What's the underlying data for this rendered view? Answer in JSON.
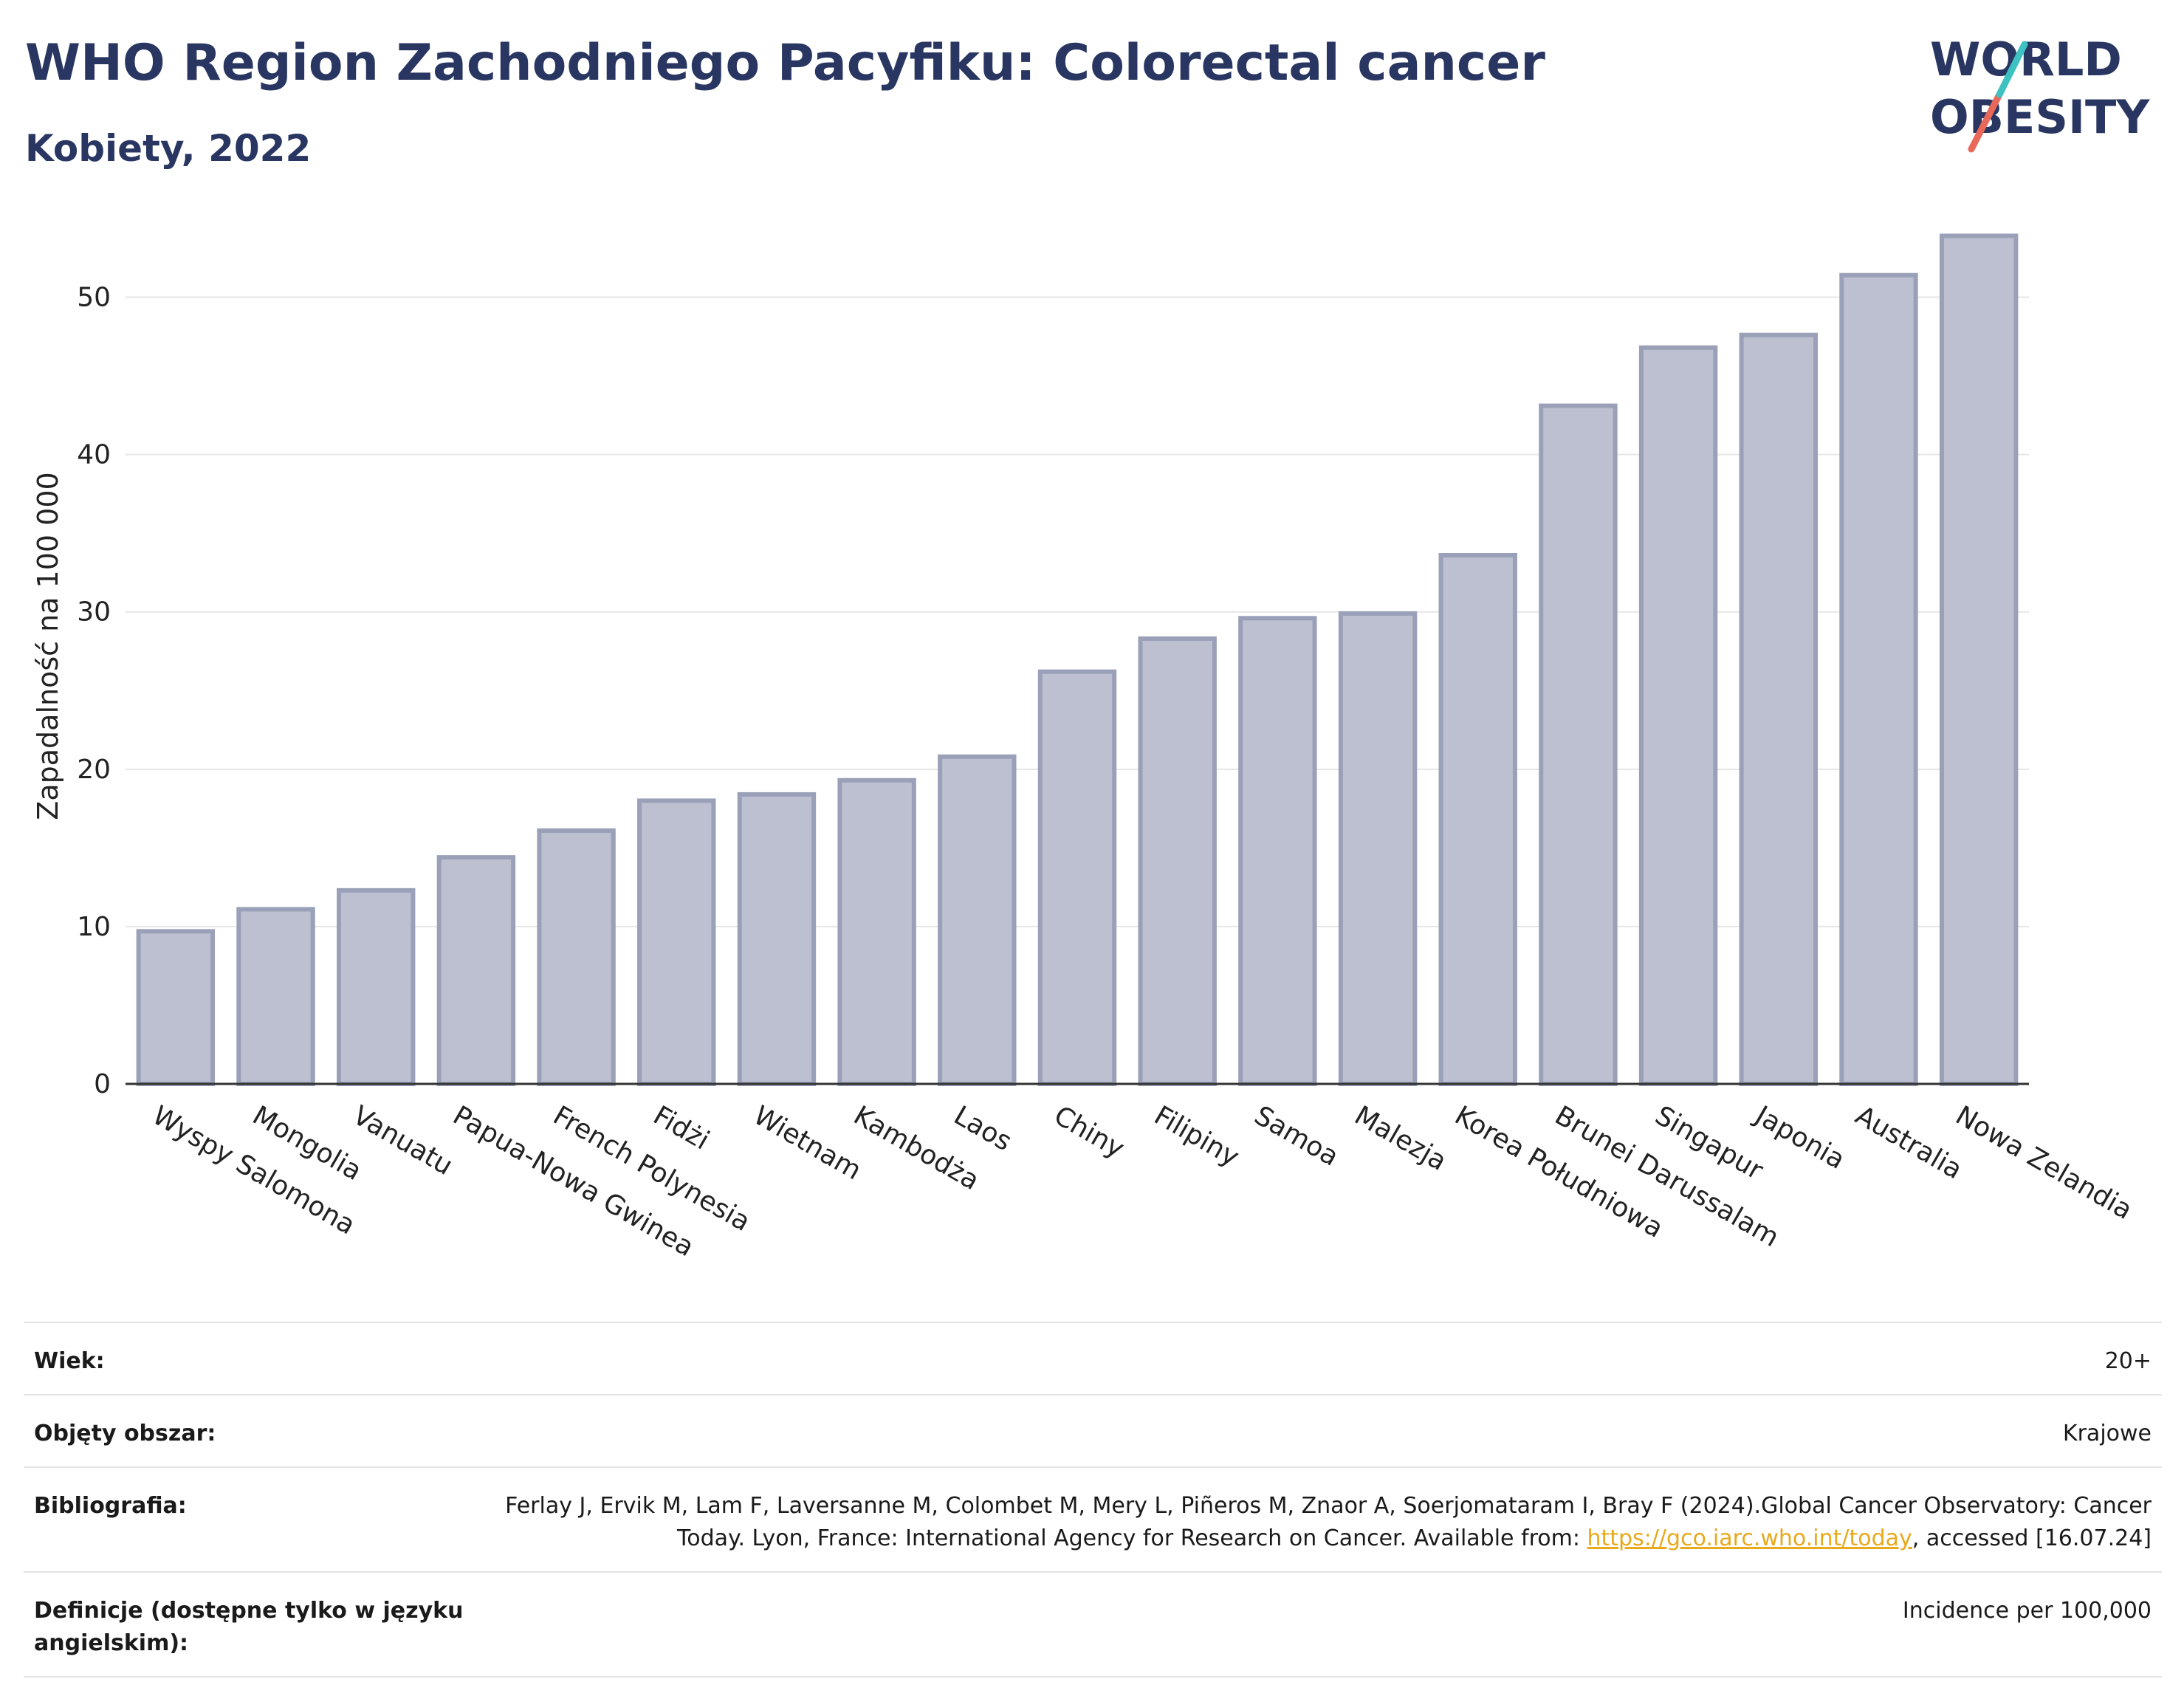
{
  "header": {
    "title": "WHO Region Zachodniego Pacyfiku: Colorectal cancer",
    "subtitle": "Kobiety, 2022"
  },
  "logo": {
    "line1": "WORLD",
    "line2": "OBESITY",
    "accent_colors": [
      "#3ec1c1",
      "#e8695a"
    ]
  },
  "chart_data": {
    "type": "bar",
    "ylabel": "Zapadalność na 100 000",
    "xlabel": "",
    "ylim": [
      0,
      55
    ],
    "yticks": [
      0,
      10,
      20,
      30,
      40,
      50
    ],
    "grid": true,
    "bar_color": "#bcc0d0",
    "bar_edge_color": "#9aa0b8",
    "categories": [
      "Wyspy Salomona",
      "Mongolia",
      "Vanuatu",
      "Papua-Nowa Gwinea",
      "French Polynesia",
      "Fidżi",
      "Wietnam",
      "Kambodża",
      "Laos",
      "Chiny",
      "Filipiny",
      "Samoa",
      "Malezja",
      "Korea Południowa",
      "Brunei Darussalam",
      "Singapur",
      "Japonia",
      "Australia",
      "Nowa Zelandia"
    ],
    "values": [
      9.7,
      11.1,
      12.3,
      14.4,
      16.1,
      18.0,
      18.4,
      19.3,
      20.8,
      26.2,
      28.3,
      29.6,
      29.9,
      33.6,
      43.1,
      46.8,
      47.6,
      51.4,
      53.9
    ]
  },
  "meta": {
    "age_label": "Wiek:",
    "age_value": "20+",
    "area_label": "Objęty obszar:",
    "area_value": "Krajowe",
    "bib_label": "Bibliografia:",
    "bib_text_1": "Ferlay J, Ervik M, Lam F, Laversanne M, Colombet M, Mery L, Piñeros M, Znaor A, Soerjomataram I, Bray F (2024).Global Cancer Observatory: Cancer Today. Lyon, France: International Agency for Research on Cancer. Available from: ",
    "bib_link": "https://gco.iarc.who.int/today",
    "bib_text_2": ", accessed [16.07.24]",
    "def_label": "Definicje (dostępne tylko w języku angielskim):",
    "def_value": "Incidence per 100,000"
  }
}
